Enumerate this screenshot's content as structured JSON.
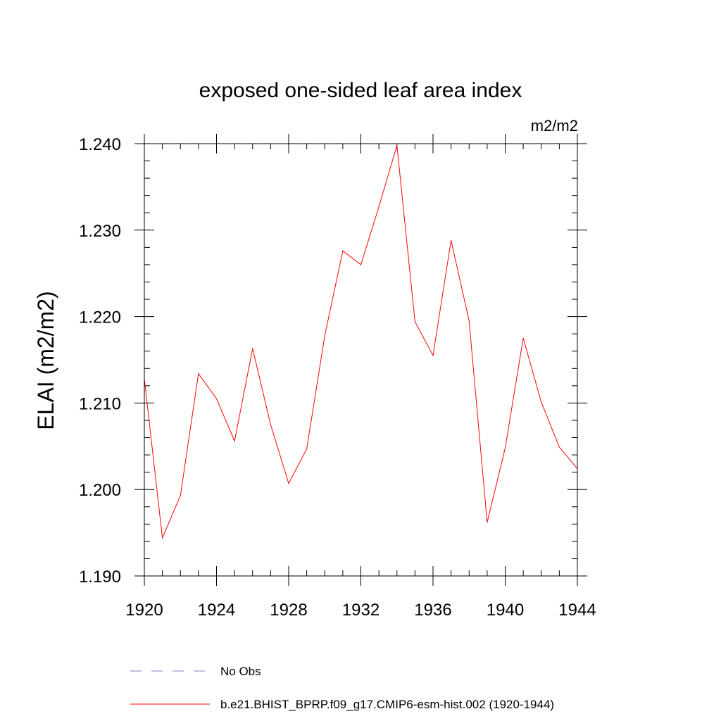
{
  "chart_data": {
    "type": "line",
    "title": "exposed one-sided leaf area index",
    "units": "m2/m2",
    "xlabel": "",
    "ylabel": "ELAI  (m2/m2)",
    "xlim": [
      1920,
      1944
    ],
    "ylim": [
      1.19,
      1.24
    ],
    "xticks": [
      1920,
      1924,
      1928,
      1932,
      1936,
      1940,
      1944
    ],
    "xtick_labels": [
      "1920",
      "1924",
      "1928",
      "1932",
      "1936",
      "1940",
      "1944"
    ],
    "yticks": [
      1.19,
      1.2,
      1.21,
      1.22,
      1.23,
      1.24
    ],
    "ytick_labels": [
      "1.190",
      "1.200",
      "1.210",
      "1.220",
      "1.230",
      "1.240"
    ],
    "grid": false,
    "series": [
      {
        "name": "b.e21.BHIST_BPRP.f09_g17.CMIP6-esm-hist.002 (1920-1944)",
        "color": "#ff0000",
        "x": [
          1920,
          1921,
          1922,
          1923,
          1924,
          1925,
          1926,
          1927,
          1928,
          1929,
          1930,
          1931,
          1932,
          1933,
          1934,
          1935,
          1936,
          1937,
          1938,
          1939,
          1940,
          1941,
          1942,
          1943,
          1944
        ],
        "values": [
          1.2128,
          1.1944,
          1.1993,
          1.2134,
          1.2105,
          1.2056,
          1.2163,
          1.2075,
          1.2007,
          1.2047,
          1.2178,
          1.2276,
          1.226,
          1.2327,
          1.2398,
          1.2194,
          1.2155,
          1.2288,
          1.2195,
          1.1962,
          1.2048,
          1.2175,
          1.2101,
          1.2049,
          1.2024
        ]
      }
    ],
    "legend": [
      {
        "label": "No Obs",
        "style": "dashed",
        "color": "#8080c0"
      },
      {
        "label": "b.e21.BHIST_BPRP.f09_g17.CMIP6-esm-hist.002 (1920-1944)",
        "style": "solid",
        "color": "#ff0000"
      }
    ],
    "legend_position": "bottom-left"
  }
}
